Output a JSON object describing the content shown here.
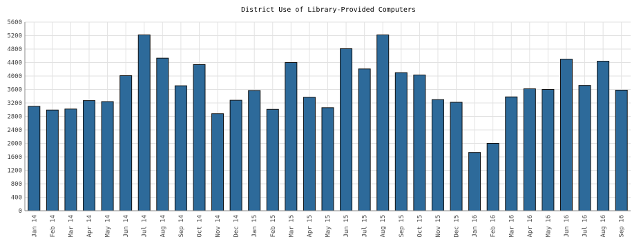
{
  "chart_data": {
    "type": "bar",
    "title": "District Use of Library-Provided Computers",
    "xlabel": "",
    "ylabel": "",
    "ylim": [
      0,
      5600
    ],
    "yticks": [
      0,
      400,
      800,
      1200,
      1600,
      2000,
      2400,
      2800,
      3200,
      3600,
      4000,
      4400,
      4800,
      5200,
      5600
    ],
    "grid": true,
    "bar_color": "#2d6a9a",
    "categories": [
      "Jan 14",
      "Feb 14",
      "Mar 14",
      "Apr 14",
      "May 14",
      "Jun 14",
      "Jul 14",
      "Aug 14",
      "Sep 14",
      "Oct 14",
      "Nov 14",
      "Dec 14",
      "Jan 15",
      "Feb 15",
      "Mar 15",
      "Apr 15",
      "May 15",
      "Jun 15",
      "Jul 15",
      "Aug 15",
      "Sep 15",
      "Oct 15",
      "Nov 15",
      "Dec 15",
      "Jan 16",
      "Feb 16",
      "Mar 16",
      "Apr 16",
      "May 16",
      "Jun 16",
      "Jul 16",
      "Aug 16",
      "Sep 16"
    ],
    "values": [
      3100,
      2990,
      3020,
      3270,
      3240,
      4010,
      5220,
      4530,
      3710,
      4340,
      2880,
      3280,
      3570,
      3010,
      4400,
      3370,
      3060,
      4810,
      4210,
      5220,
      4100,
      4030,
      3300,
      3220,
      1730,
      2000,
      3380,
      3620,
      3600,
      4500,
      3720,
      4440,
      3580
    ]
  }
}
